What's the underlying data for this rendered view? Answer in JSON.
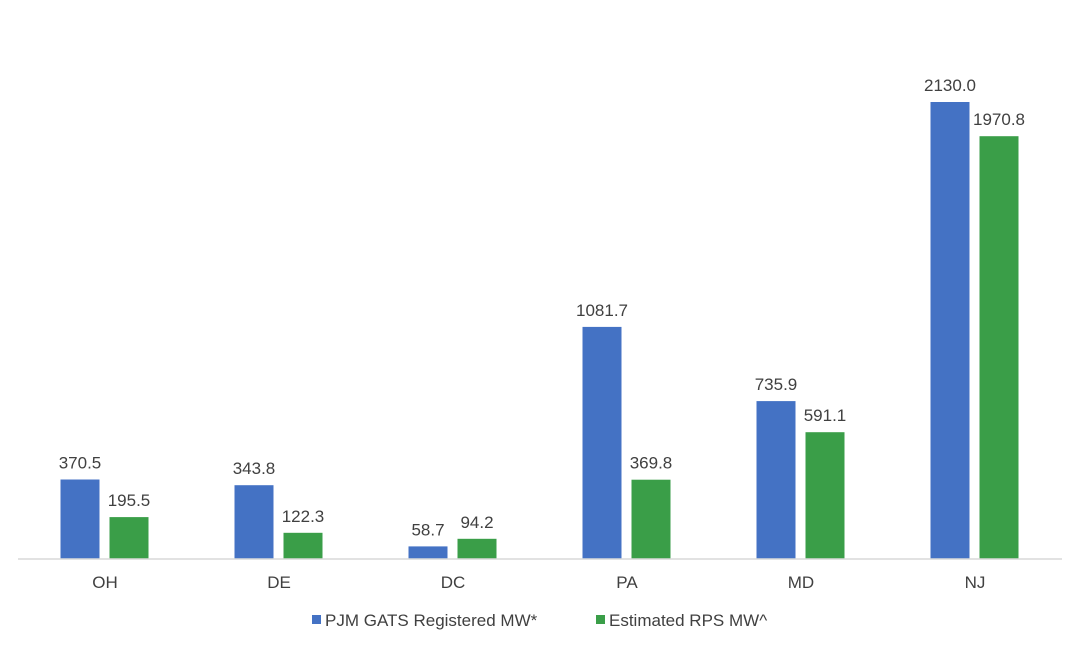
{
  "chart_data": {
    "type": "bar",
    "categories": [
      "OH",
      "DE",
      "DC",
      "PA",
      "MD",
      "NJ"
    ],
    "series": [
      {
        "name": "PJM GATS Registered MW*",
        "color": "#4472C4",
        "values": [
          370.5,
          343.8,
          58.7,
          1081.7,
          735.9,
          2130.0
        ],
        "labels": [
          "370.5",
          "343.8",
          "58.7",
          "1081.7",
          "735.9",
          "2130.0"
        ]
      },
      {
        "name": "Estimated RPS MW^",
        "color": "#3A9E48",
        "values": [
          195.5,
          122.3,
          94.2,
          369.8,
          591.1,
          1970.8
        ],
        "labels": [
          "195.5",
          "122.3",
          "94.2",
          "369.8",
          "591.1",
          "1970.8"
        ]
      }
    ],
    "ylim": [
      0,
      2350
    ],
    "grid": false,
    "legend_position": "bottom",
    "axis_color": "#D9D9D9"
  }
}
